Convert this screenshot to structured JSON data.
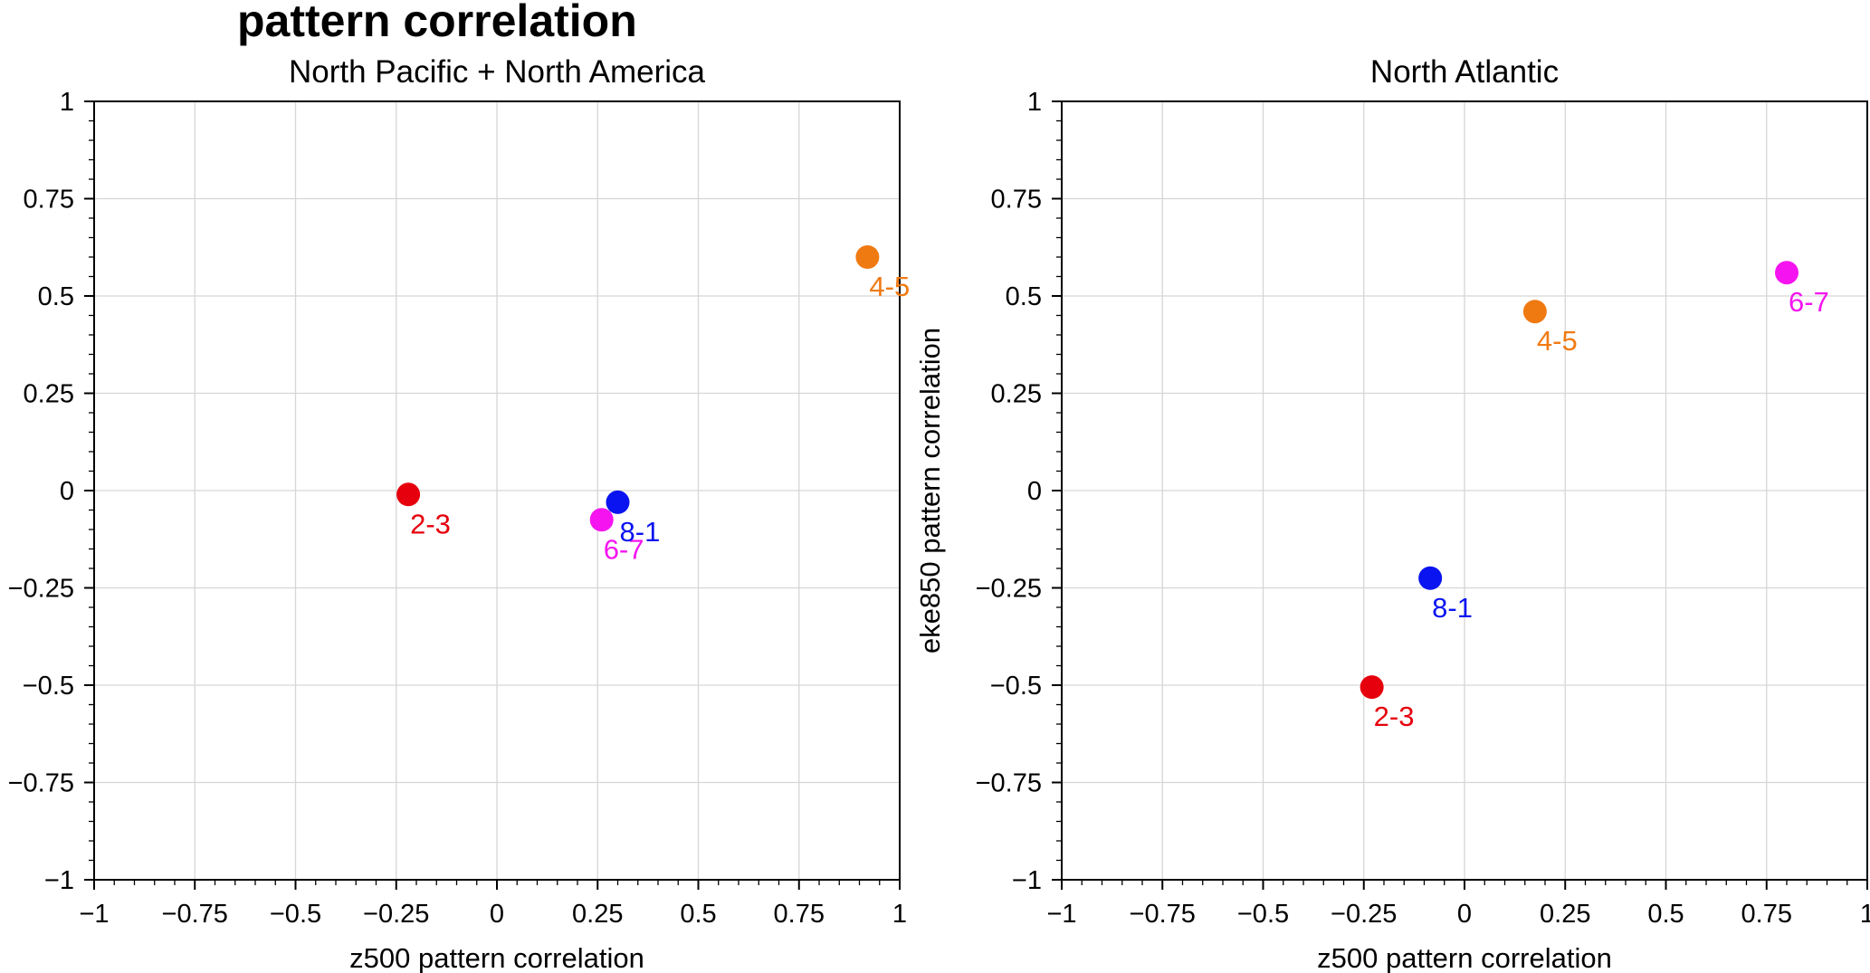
{
  "figure": {
    "title": "pattern correlation"
  },
  "chart_data": [
    {
      "type": "scatter",
      "title": "North Pacific + North America",
      "xlabel": "z500 pattern correlation",
      "ylabel": "",
      "xlim": [
        -1,
        1
      ],
      "ylim": [
        -1,
        1
      ],
      "xticks": [
        -1,
        -0.75,
        -0.5,
        -0.25,
        0,
        0.25,
        0.5,
        0.75,
        1
      ],
      "yticks": [
        -1,
        -0.75,
        -0.5,
        -0.25,
        0,
        0.25,
        0.5,
        0.75,
        1
      ],
      "xtick_labels": [
        "−1",
        "−0.75",
        "−0.5",
        "−0.25",
        "0",
        "0.25",
        "0.5",
        "0.75",
        "1"
      ],
      "ytick_labels": [
        "−1",
        "−0.75",
        "−0.5",
        "−0.25",
        "0",
        "0.25",
        "0.5",
        "0.75",
        "1"
      ],
      "grid": true,
      "points": [
        {
          "label": "2-3",
          "x": -0.22,
          "y": -0.01,
          "color": "#e6000d"
        },
        {
          "label": "4-5",
          "x": 0.92,
          "y": 0.6,
          "color": "#f07a12"
        },
        {
          "label": "6-7",
          "x": 0.26,
          "y": -0.075,
          "color": "#f514f0"
        },
        {
          "label": "8-1",
          "x": 0.3,
          "y": -0.03,
          "color": "#0a14f0"
        }
      ]
    },
    {
      "type": "scatter",
      "title": "North Atlantic",
      "xlabel": "z500 pattern correlation",
      "ylabel": "eke850 pattern correlation",
      "xlim": [
        -1,
        1
      ],
      "ylim": [
        -1,
        1
      ],
      "xticks": [
        -1,
        -0.75,
        -0.5,
        -0.25,
        0,
        0.25,
        0.5,
        0.75,
        1
      ],
      "yticks": [
        -1,
        -0.75,
        -0.5,
        -0.25,
        0,
        0.25,
        0.5,
        0.75,
        1
      ],
      "xtick_labels": [
        "−1",
        "−0.75",
        "−0.5",
        "−0.25",
        "0",
        "0.25",
        "0.5",
        "0.75",
        "1"
      ],
      "ytick_labels": [
        "−1",
        "−0.75",
        "−0.5",
        "−0.25",
        "0",
        "0.25",
        "0.5",
        "0.75",
        "1"
      ],
      "grid": true,
      "points": [
        {
          "label": "2-3",
          "x": -0.23,
          "y": -0.505,
          "color": "#e6000d"
        },
        {
          "label": "4-5",
          "x": 0.175,
          "y": 0.46,
          "color": "#f07a12"
        },
        {
          "label": "6-7",
          "x": 0.8,
          "y": 0.56,
          "color": "#f514f0"
        },
        {
          "label": "8-1",
          "x": -0.085,
          "y": -0.225,
          "color": "#0a14f0"
        }
      ]
    }
  ]
}
